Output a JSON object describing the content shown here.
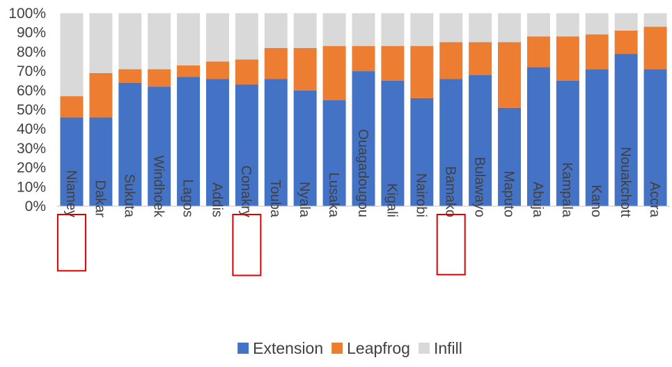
{
  "chart_data": {
    "type": "bar",
    "stacked": true,
    "percent": true,
    "categories": [
      "Niamey",
      "Dakar",
      "Sukuta",
      "Windhoek",
      "Lagos",
      "Addis",
      "Conakry",
      "Touba",
      "Nyala",
      "Lusaka",
      "Ouagadougou",
      "Kigali",
      "Nairobi",
      "Bamako",
      "Bulawayo",
      "Maputo",
      "Abuja",
      "Kampala",
      "Kano",
      "Nouakchott",
      "Accra"
    ],
    "highlighted_categories": [
      "Niamey",
      "Conakry",
      "Bamako"
    ],
    "series": [
      {
        "name": "Extension",
        "color": "#4472C4",
        "values": [
          46,
          46,
          64,
          62,
          67,
          66,
          63,
          66,
          60,
          55,
          70,
          65,
          56,
          66,
          68,
          51,
          72,
          65,
          71,
          79,
          71
        ]
      },
      {
        "name": "Leapfrog",
        "color": "#ED7D31",
        "values": [
          11,
          23,
          7,
          9,
          6,
          9,
          13,
          16,
          22,
          28,
          13,
          18,
          27,
          19,
          17,
          34,
          16,
          23,
          18,
          12,
          22
        ]
      },
      {
        "name": "Infill",
        "color": "#D9D9D9",
        "values": [
          43,
          31,
          29,
          29,
          27,
          25,
          24,
          18,
          18,
          17,
          17,
          17,
          17,
          15,
          15,
          15,
          12,
          12,
          11,
          9,
          7
        ]
      }
    ],
    "yticks": [
      "0%",
      "10%",
      "20%",
      "30%",
      "40%",
      "50%",
      "60%",
      "70%",
      "80%",
      "90%",
      "100%"
    ],
    "ylim": [
      0,
      100
    ],
    "grid": false,
    "legend_position": "bottom",
    "highlight_color": "#E00000"
  }
}
